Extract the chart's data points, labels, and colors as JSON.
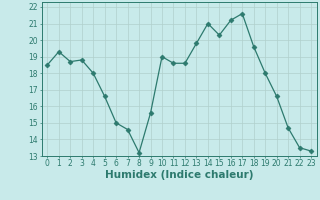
{
  "x": [
    0,
    1,
    2,
    3,
    4,
    5,
    6,
    7,
    8,
    9,
    10,
    11,
    12,
    13,
    14,
    15,
    16,
    17,
    18,
    19,
    20,
    21,
    22,
    23
  ],
  "y": [
    18.5,
    19.3,
    18.7,
    18.8,
    18.0,
    16.6,
    15.0,
    14.6,
    13.2,
    15.6,
    19.0,
    18.6,
    18.6,
    19.8,
    21.0,
    20.3,
    21.2,
    21.6,
    19.6,
    18.0,
    16.6,
    14.7,
    13.5,
    13.3
  ],
  "line_color": "#2d7a6e",
  "marker": "D",
  "marker_size": 2.5,
  "bg_color": "#c8eaea",
  "grid_color": "#b0d0cc",
  "xlabel": "Humidex (Indice chaleur)",
  "xlim": [
    -0.5,
    23.5
  ],
  "ylim": [
    13,
    22.3
  ],
  "yticks": [
    13,
    14,
    15,
    16,
    17,
    18,
    19,
    20,
    21,
    22
  ],
  "xticks": [
    0,
    1,
    2,
    3,
    4,
    5,
    6,
    7,
    8,
    9,
    10,
    11,
    12,
    13,
    14,
    15,
    16,
    17,
    18,
    19,
    20,
    21,
    22,
    23
  ],
  "xtick_labels": [
    "0",
    "1",
    "2",
    "3",
    "4",
    "5",
    "6",
    "7",
    "8",
    "9",
    "10",
    "11",
    "12",
    "13",
    "14",
    "15",
    "16",
    "17",
    "18",
    "19",
    "20",
    "21",
    "22",
    "23"
  ],
  "tick_fontsize": 5.5,
  "xlabel_fontsize": 7.5
}
